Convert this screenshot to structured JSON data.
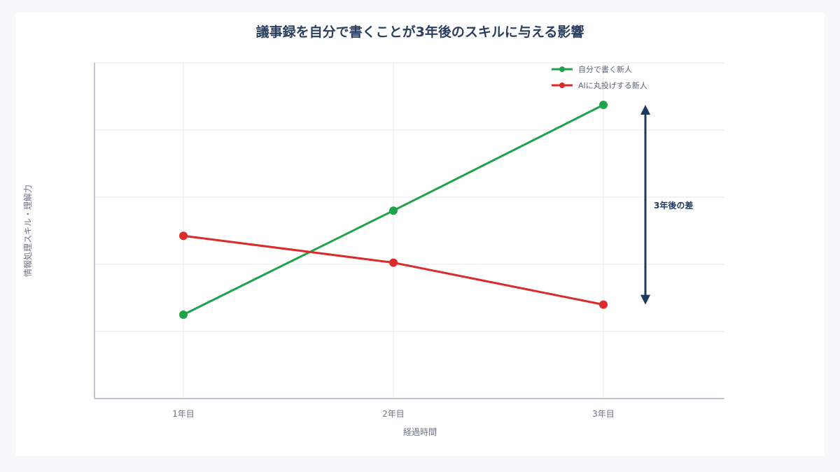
{
  "chart_data": {
    "type": "line",
    "title": "議事録を自分で書くことが3年後のスキルに与える影響",
    "xlabel": "経過時間",
    "ylabel": "情報処理スキル・理解力",
    "categories": [
      "1年目",
      "2年目",
      "3年目"
    ],
    "ylim": [
      0,
      100
    ],
    "y_ticks_labeled": false,
    "grid": true,
    "legend_position": "top-right",
    "series": [
      {
        "name": "自分で書く新人",
        "values": [
          25,
          56,
          87.5
        ],
        "color": "#1fa34a"
      },
      {
        "name": "AIに丸投げする新人",
        "values": [
          48.5,
          40.5,
          28
        ],
        "color": "#dc2b2b"
      }
    ],
    "annotation": {
      "text": "3年後の差",
      "category": "3年目",
      "from": 28,
      "to": 87.5,
      "color": "#1f3a5f"
    }
  }
}
